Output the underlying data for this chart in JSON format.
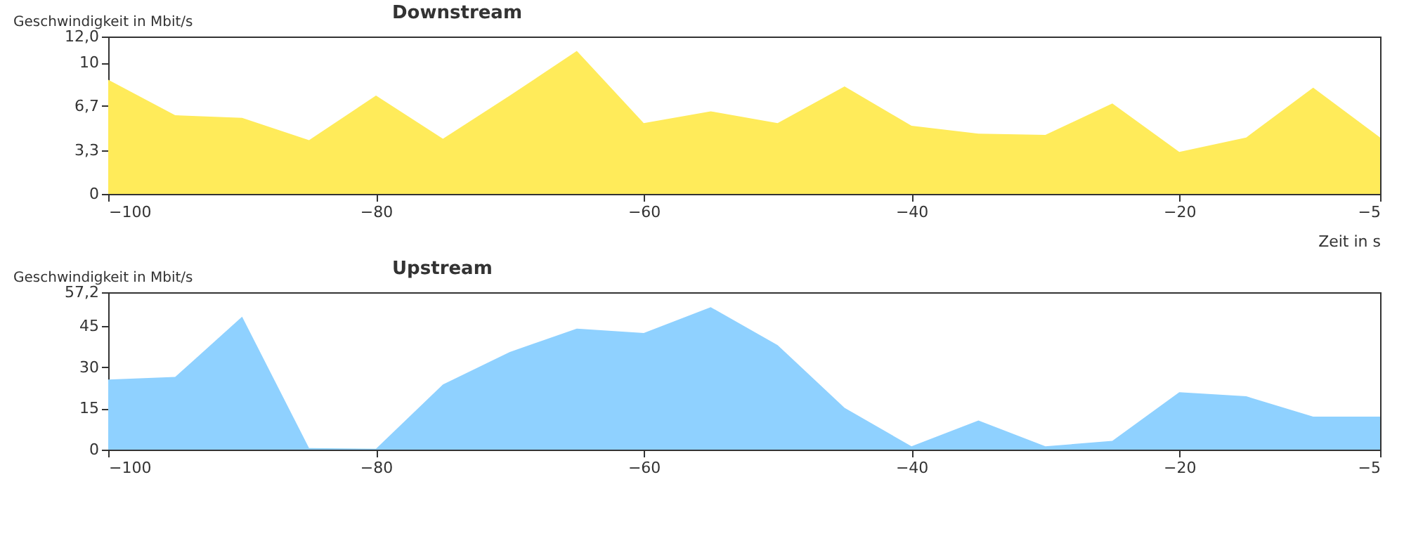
{
  "chart_data": [
    {
      "type": "area",
      "title": "Downstream",
      "ylabel": "Geschwindigkeit in Mbit/s",
      "xlabel": "Zeit in s",
      "x": [
        -100,
        -95,
        -90,
        -85,
        -80,
        -75,
        -70,
        -65,
        -60,
        -55,
        -50,
        -45,
        -40,
        -35,
        -30,
        -25,
        -20,
        -15,
        -10,
        -5
      ],
      "series": [
        {
          "color": "#ffeb5a",
          "values": [
            8.7,
            6.0,
            5.8,
            4.1,
            7.5,
            4.2,
            7.5,
            10.9,
            5.4,
            6.3,
            5.4,
            8.2,
            5.2,
            4.6,
            4.5,
            6.9,
            3.2,
            4.3,
            8.1,
            4.3
          ]
        }
      ],
      "xlim": [
        -100,
        -5
      ],
      "xticks": [
        -100,
        -80,
        -60,
        -40,
        -20,
        -5
      ],
      "ylim": [
        0,
        12
      ],
      "yticks": [
        0,
        {
          "value": 3.3,
          "label": "3,3"
        },
        {
          "value": 6.7,
          "label": "6,7"
        },
        10,
        {
          "value": 12,
          "label": "12,0"
        }
      ],
      "grid": false
    },
    {
      "type": "area",
      "title": "Upstream",
      "ylabel": "Geschwindigkeit in Mbit/s",
      "x": [
        -100,
        -95,
        -90,
        -85,
        -80,
        -75,
        -70,
        -65,
        -60,
        -55,
        -50,
        -45,
        -40,
        -35,
        -30,
        -25,
        -20,
        -15,
        -10,
        -5
      ],
      "series": [
        {
          "color": "#8fd1ff",
          "values": [
            25.5,
            26.4,
            48.3,
            0.6,
            0.3,
            23.7,
            35.5,
            44.0,
            42.4,
            51.8,
            38.0,
            15.2,
            1.2,
            10.6,
            1.2,
            3.2,
            20.9,
            19.4,
            12.0,
            12.0
          ]
        }
      ],
      "xlim": [
        -100,
        -5
      ],
      "xticks": [
        -100,
        -80,
        -60,
        -40,
        -20,
        -5
      ],
      "ylim": [
        0,
        57.2
      ],
      "yticks": [
        0,
        15,
        30,
        45,
        {
          "value": 57.2,
          "label": "57,2"
        }
      ],
      "grid": false
    }
  ]
}
